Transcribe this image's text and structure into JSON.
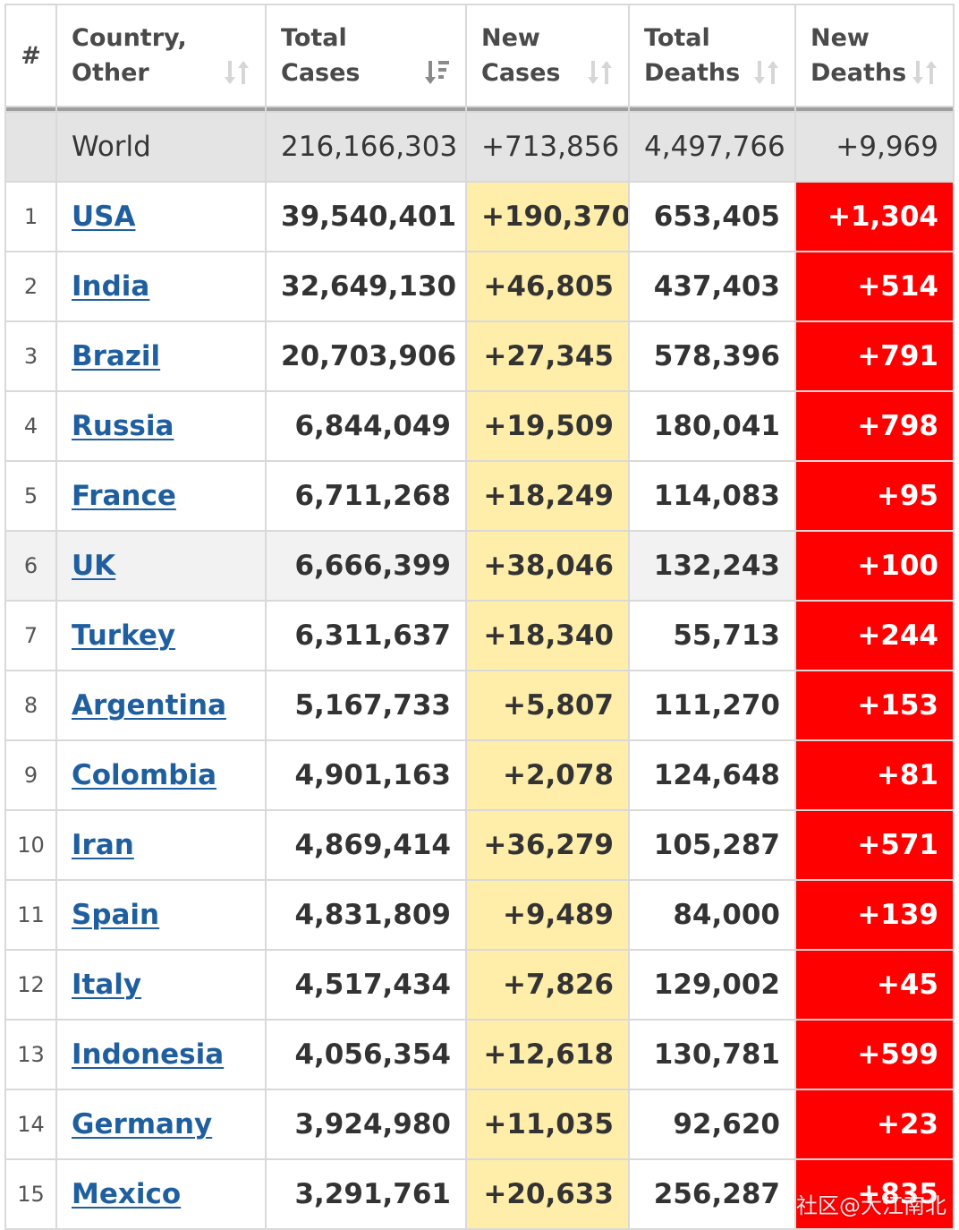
{
  "table": {
    "headers": [
      {
        "label": "#",
        "sortable": false
      },
      {
        "label": "Country,\nOther",
        "sortable": true,
        "sort_icon": "sort-updown-icon"
      },
      {
        "label": "Total\nCases",
        "sortable": true,
        "sort_icon": "sort-desc-active-icon"
      },
      {
        "label": "New\nCases",
        "sortable": true,
        "sort_icon": "sort-updown-icon"
      },
      {
        "label": "Total\nDeaths",
        "sortable": true,
        "sort_icon": "sort-updown-icon"
      },
      {
        "label": "New\nDeaths",
        "sortable": true,
        "sort_icon": "sort-updown-icon"
      }
    ],
    "world": {
      "country": "World",
      "total_cases": "216,166,303",
      "new_cases": "+713,856",
      "total_deaths": "4,497,766",
      "new_deaths": "+9,969"
    },
    "rows": [
      {
        "rank": "1",
        "country": "USA",
        "total_cases": "39,540,401",
        "new_cases": "+190,370",
        "total_deaths": "653,405",
        "new_deaths": "+1,304"
      },
      {
        "rank": "2",
        "country": "India",
        "total_cases": "32,649,130",
        "new_cases": "+46,805",
        "total_deaths": "437,403",
        "new_deaths": "+514"
      },
      {
        "rank": "3",
        "country": "Brazil",
        "total_cases": "20,703,906",
        "new_cases": "+27,345",
        "total_deaths": "578,396",
        "new_deaths": "+791"
      },
      {
        "rank": "4",
        "country": "Russia",
        "total_cases": "6,844,049",
        "new_cases": "+19,509",
        "total_deaths": "180,041",
        "new_deaths": "+798"
      },
      {
        "rank": "5",
        "country": "France",
        "total_cases": "6,711,268",
        "new_cases": "+18,249",
        "total_deaths": "114,083",
        "new_deaths": "+95"
      },
      {
        "rank": "6",
        "country": "UK",
        "total_cases": "6,666,399",
        "new_cases": "+38,046",
        "total_deaths": "132,243",
        "new_deaths": "+100"
      },
      {
        "rank": "7",
        "country": "Turkey",
        "total_cases": "6,311,637",
        "new_cases": "+18,340",
        "total_deaths": "55,713",
        "new_deaths": "+244"
      },
      {
        "rank": "8",
        "country": "Argentina",
        "total_cases": "5,167,733",
        "new_cases": "+5,807",
        "total_deaths": "111,270",
        "new_deaths": "+153"
      },
      {
        "rank": "9",
        "country": "Colombia",
        "total_cases": "4,901,163",
        "new_cases": "+2,078",
        "total_deaths": "124,648",
        "new_deaths": "+81"
      },
      {
        "rank": "10",
        "country": "Iran",
        "total_cases": "4,869,414",
        "new_cases": "+36,279",
        "total_deaths": "105,287",
        "new_deaths": "+571"
      },
      {
        "rank": "11",
        "country": "Spain",
        "total_cases": "4,831,809",
        "new_cases": "+9,489",
        "total_deaths": "84,000",
        "new_deaths": "+139"
      },
      {
        "rank": "12",
        "country": "Italy",
        "total_cases": "4,517,434",
        "new_cases": "+7,826",
        "total_deaths": "129,002",
        "new_deaths": "+45"
      },
      {
        "rank": "13",
        "country": "Indonesia",
        "total_cases": "4,056,354",
        "new_cases": "+12,618",
        "total_deaths": "130,781",
        "new_deaths": "+599"
      },
      {
        "rank": "14",
        "country": "Germany",
        "total_cases": "3,924,980",
        "new_cases": "+11,035",
        "total_deaths": "92,620",
        "new_deaths": "+23"
      },
      {
        "rank": "15",
        "country": "Mexico",
        "total_cases": "3,291,761",
        "new_cases": "+20,633",
        "total_deaths": "256,287",
        "new_deaths": "+835"
      }
    ]
  },
  "watermark": "社区@大江南北",
  "colors": {
    "new_cases_bg": "#ffeeaa",
    "new_deaths_bg": "#ff0000",
    "world_row_bg": "#e4e4e4",
    "link": "#1f5f9f"
  }
}
